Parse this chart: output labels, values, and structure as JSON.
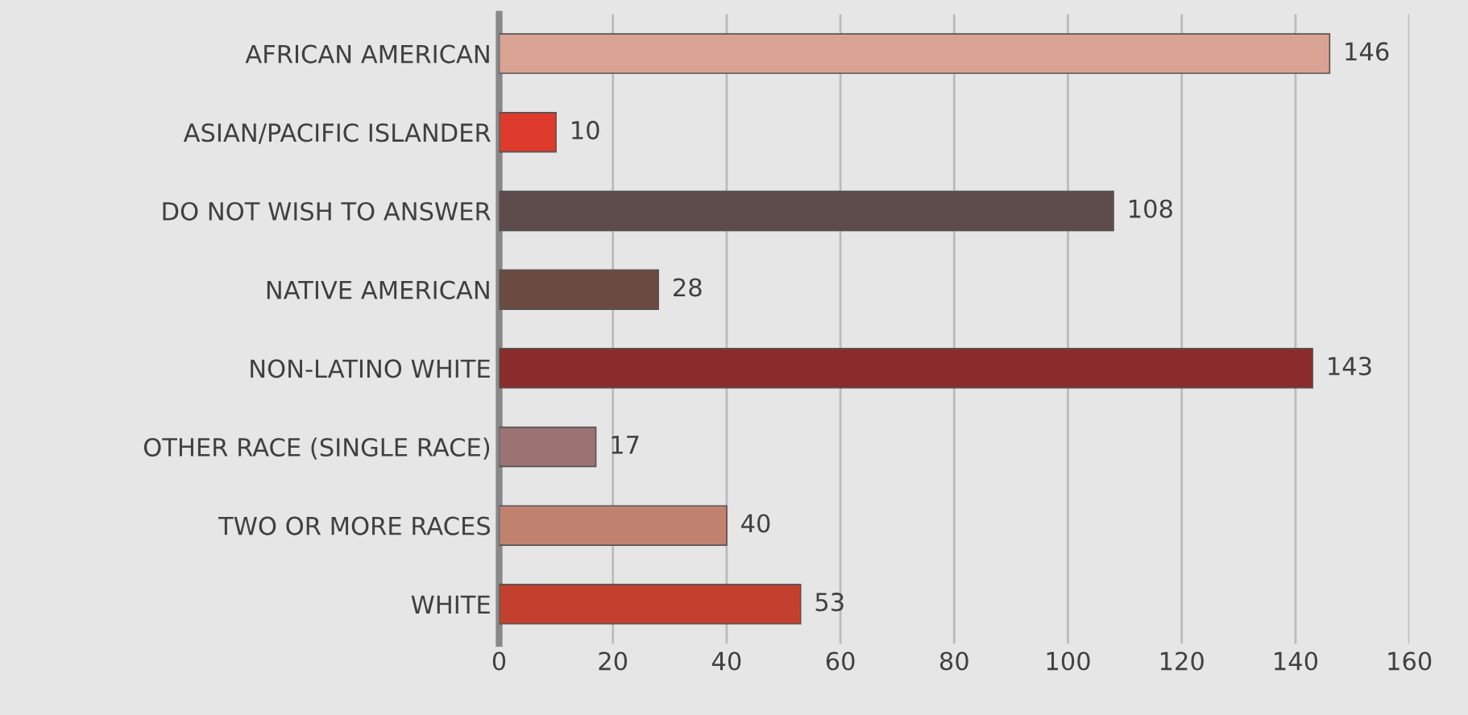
{
  "chart_data": {
    "type": "bar",
    "orientation": "horizontal",
    "categories": [
      "AFRICAN AMERICAN",
      "ASIAN/PACIFIC ISLANDER",
      "DO NOT WISH TO ANSWER",
      "NATIVE AMERICAN",
      "NON-LATINO WHITE",
      "OTHER RACE (SINGLE RACE)",
      "TWO OR MORE RACES",
      "WHITE"
    ],
    "values": [
      146,
      10,
      108,
      28,
      143,
      17,
      40,
      53
    ],
    "colors": [
      "#d9a393",
      "#de3b2c",
      "#5e4b4b",
      "#6b4a3f",
      "#8b2b2b",
      "#9c7272",
      "#c0826f",
      "#c3402f"
    ],
    "xlim": [
      0,
      160
    ],
    "xticks": [
      0,
      20,
      40,
      60,
      80,
      100,
      120,
      140,
      160
    ],
    "grid": "x",
    "data_labels": true
  }
}
